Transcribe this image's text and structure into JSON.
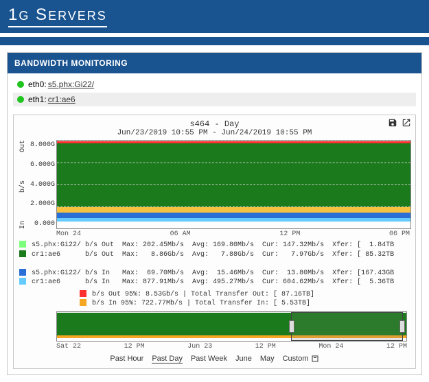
{
  "brand": {
    "logo_html": "1G SERVERS"
  },
  "panel": {
    "title": "BANDWIDTH MONITORING"
  },
  "interfaces": [
    {
      "dot_color": "#1fc41f",
      "label": "eth0:",
      "link": "s5.phx:Gi22/",
      "alt": false
    },
    {
      "dot_color": "#1fc41f",
      "label": "eth1:",
      "link": "cr1:ae6",
      "alt": true
    }
  ],
  "chart": {
    "title": "s464 - Day",
    "subtitle": "Jun/23/2019 10:55 PM - Jun/24/2019 10:55 PM",
    "y_label_top": "Out",
    "y_label_mid": "b/s",
    "y_label_bot": "In",
    "y_ticks": [
      "8.000G",
      "6.000G",
      "4.000G",
      "2.000G",
      "0.000"
    ],
    "x_ticks": [
      "Mon 24",
      "06 AM",
      "12 PM",
      "06 PM"
    ],
    "colors": {
      "out_main": "#1b7a1b",
      "out_red": "#ff3030",
      "in_yellow": "#f5c242",
      "in_blue": "#2a6fd6",
      "in_cyan": "#66ccff",
      "grid": "#cccccc",
      "bg": "#fdfdfd"
    },
    "out_area": {
      "top_pct": 3,
      "bottom_pct": 76
    },
    "out_red_area": {
      "top_pct": 1,
      "bottom_pct": 3
    },
    "in_yellow_area": {
      "top_pct": 76,
      "bottom_pct": 82
    },
    "in_blue_area": {
      "top_pct": 82,
      "bottom_pct": 88
    },
    "in_cyan_area": {
      "top_pct": 88,
      "bottom_pct": 92
    }
  },
  "legend": [
    {
      "color": "#7cff7c",
      "text": "s5.phx:Gi22/ b/s Out  Max: 202.45Mb/s  Avg: 169.80Mb/s  Cur: 147.32Mb/s  Xfer: [  1.84TB"
    },
    {
      "color": "#1b7a1b",
      "text": "cr1:ae6      b/s Out  Max:   8.86Gb/s  Avg:   7.88Gb/s  Cur:   7.97Gb/s  Xfer: [ 85.32TB"
    },
    {
      "color": null,
      "text": ""
    },
    {
      "color": "#2a6fd6",
      "text": "s5.phx:Gi22/ b/s In   Max:  69.70Mb/s  Avg:  15.46Mb/s  Cur:  13.80Mb/s  Xfer: [167.43GB"
    },
    {
      "color": "#66ccff",
      "text": "cr1:ae6      b/s In   Max: 877.91Mb/s  Avg: 495.27Mb/s  Cur: 604.62Mb/s  Xfer: [  5.36TB"
    }
  ],
  "summary": [
    {
      "color": "#ff3030",
      "text": "b/s Out   95%:   8.53Gb/s  |  Total Transfer Out: [ 87.16TB]"
    },
    {
      "color": "#f5a623",
      "text": "b/s In    95%: 722.77Mb/s  |  Total Transfer In:  [  5.53TB]"
    }
  ],
  "mini": {
    "out": {
      "top_pct": 4,
      "bottom_pct": 82
    },
    "orange": {
      "top_pct": 82,
      "bottom_pct": 92
    },
    "brush": {
      "left_pct": 67,
      "right_pct": 99
    },
    "x_ticks": [
      "Sat 22",
      "12 PM",
      "Jun 23",
      "12 PM",
      "Mon 24",
      "12 PM"
    ]
  },
  "ranges": {
    "items": [
      "Past Hour",
      "Past Day",
      "Past Week",
      "June",
      "May",
      "Custom"
    ],
    "active": "Past Day"
  }
}
